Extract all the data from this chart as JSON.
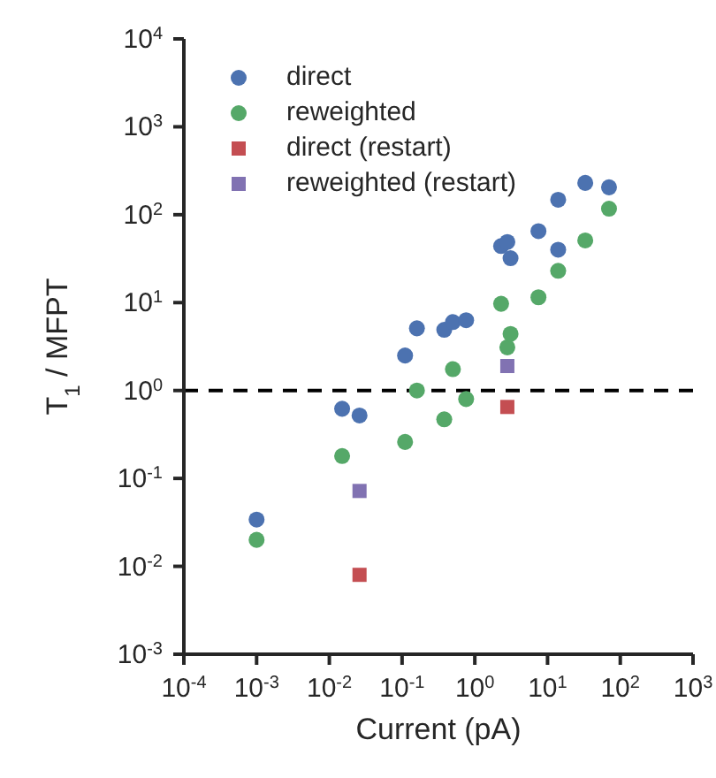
{
  "chart_data": {
    "type": "scatter",
    "xlabel": "Current (pA)",
    "ylabel": "T$_{1}$ / MFPT",
    "log": "xy",
    "grid": false,
    "legend": "top left",
    "xlim": [
      0.0001,
      1000
    ],
    "ylim": [
      0.001,
      10000
    ],
    "xticks": [
      {
        "value": 0.0001,
        "label": "10$^{-4}$"
      },
      {
        "value": 0.001,
        "label": "10$^{-3}$"
      },
      {
        "value": 0.01,
        "label": "10$^{-2}$"
      },
      {
        "value": 0.1,
        "label": "10$^{-1}$"
      },
      {
        "value": 1,
        "label": "10$^{0}$"
      },
      {
        "value": 10,
        "label": "10$^{1}$"
      },
      {
        "value": 100,
        "label": "10$^{2}$"
      },
      {
        "value": 1000,
        "label": "10$^{3}$"
      }
    ],
    "yticks": [
      {
        "value": 0.001,
        "label": "10$^{-3}$"
      },
      {
        "value": 0.01,
        "label": "10$^{-2}$"
      },
      {
        "value": 0.1,
        "label": "10$^{-1}$"
      },
      {
        "value": 1,
        "label": "10$^{0}$"
      },
      {
        "value": 10,
        "label": "10$^{1}$"
      },
      {
        "value": 100,
        "label": "10$^{2}$"
      },
      {
        "value": 1000,
        "label": "10$^{3}$"
      },
      {
        "value": 10000,
        "label": "10$^{4}$"
      }
    ],
    "ref_lines": [
      {
        "axis": "y",
        "value": 1,
        "color": "#000000",
        "line_style": "dashed"
      }
    ],
    "series": [
      {
        "name": "direct",
        "color": "#4c72b0",
        "marker": "circle",
        "x": [
          0.001,
          0.015,
          0.026,
          0.11,
          0.16,
          0.38,
          0.5,
          0.76,
          2.3,
          2.8,
          3.1,
          7.5,
          14,
          14,
          33,
          70
        ],
        "values": [
          0.034,
          0.62,
          0.52,
          2.5,
          5.1,
          4.9,
          6.0,
          6.3,
          44,
          49,
          32,
          65,
          148,
          40,
          230,
          205
        ]
      },
      {
        "name": "reweighted",
        "color": "#55a868",
        "marker": "circle",
        "x": [
          0.001,
          0.015,
          0.11,
          0.16,
          0.38,
          0.5,
          0.76,
          2.3,
          2.8,
          3.1,
          7.5,
          14,
          33,
          70
        ],
        "values": [
          0.02,
          0.18,
          0.26,
          1.0,
          0.47,
          1.75,
          0.8,
          9.7,
          3.1,
          4.4,
          11.5,
          23,
          51,
          117
        ]
      },
      {
        "name": "direct (restart)",
        "color": "#c44e52",
        "marker": "square",
        "x": [
          0.026,
          2.8
        ],
        "values": [
          0.008,
          0.65
        ]
      },
      {
        "name": "reweighted (restart)",
        "color": "#8172b2",
        "marker": "square",
        "x": [
          0.026,
          2.8
        ],
        "values": [
          0.072,
          1.9
        ]
      }
    ]
  }
}
